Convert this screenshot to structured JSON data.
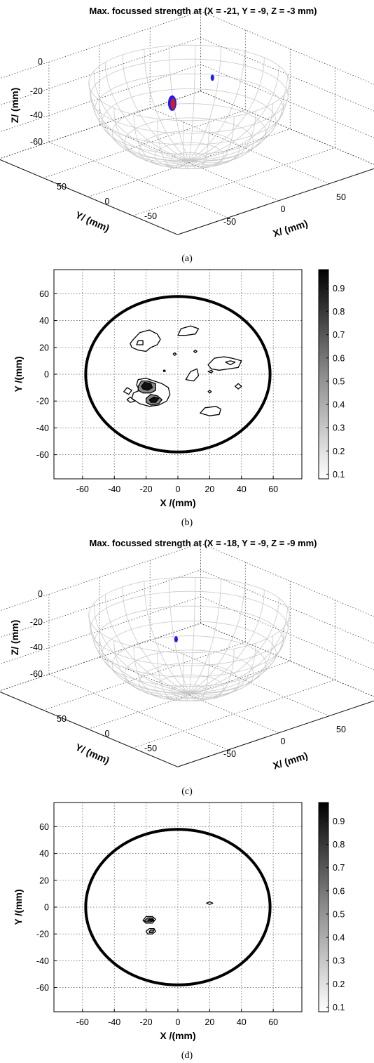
{
  "chart_data": [
    {
      "panel": "(a)",
      "type": "surface3d",
      "title": "Max. focussed strength at (X = -21, Y = -9, Z = -3 mm)",
      "xlabel": "X/ (mm)",
      "ylabel": "Y/ (mm)",
      "zlabel": "Z/ (mm)",
      "x_ticks": [
        "-50",
        "0",
        "50"
      ],
      "y_ticks": [
        "50",
        "0",
        "-50"
      ],
      "z_ticks": [
        "0",
        "-20",
        "-40",
        "-60"
      ],
      "zlim": [
        -60,
        0
      ],
      "grid": true,
      "surface": "hemisphere, radius 58 mm",
      "focus_point_mm": {
        "x": -21,
        "y": -9,
        "z": -3
      },
      "markers": [
        {
          "x": -21,
          "y": -9,
          "z": -3,
          "color": "#1a1aff",
          "size": "large"
        },
        {
          "x": 18,
          "y": 0,
          "z": -2,
          "color": "#1a1aff",
          "size": "small"
        }
      ],
      "marker_inner_color": "#cc2020"
    },
    {
      "panel": "(b)",
      "type": "contour",
      "xlabel": "X /(mm)",
      "ylabel": "Y /(mm)",
      "x_ticks": [
        "-60",
        "-40",
        "-20",
        "0",
        "20",
        "40",
        "60"
      ],
      "y_ticks": [
        "60",
        "40",
        "20",
        "0",
        "-20",
        "-40",
        "-60"
      ],
      "xlim": [
        -78,
        78
      ],
      "ylim": [
        -78,
        78
      ],
      "grid": true,
      "colorbar": {
        "ticks": [
          "0.9",
          "0.8",
          "0.7",
          "0.6",
          "0.5",
          "0.4",
          "0.3",
          "0.2",
          "0.1"
        ],
        "range": [
          0.08,
          0.98
        ],
        "colormap": "gray-reversed"
      },
      "boundary_circle_radius_mm": 58,
      "peaks": [
        {
          "x": -21,
          "y": -9,
          "value": 1.0
        },
        {
          "x": -15,
          "y": -19,
          "value": 0.7
        }
      ],
      "contours": [
        {
          "level": 0.1,
          "points": [
            [
              -24,
              -12
            ],
            [
              -26,
              -8
            ],
            [
              -25,
              -4
            ],
            [
              -20,
              -3
            ],
            [
              -15,
              -5
            ],
            [
              -10,
              -7
            ],
            [
              -6,
              -10
            ],
            [
              -5,
              -15
            ],
            [
              -7,
              -20
            ],
            [
              -12,
              -23
            ],
            [
              -18,
              -24
            ],
            [
              -24,
              -22
            ],
            [
              -29,
              -18
            ],
            [
              -28,
              -14
            ]
          ]
        },
        {
          "level": 0.3,
          "points": [
            [
              -25,
              -9
            ],
            [
              -23,
              -5
            ],
            [
              -19,
              -5
            ],
            [
              -14,
              -7
            ],
            [
              -14,
              -12
            ],
            [
              -17,
              -14
            ],
            [
              -22,
              -14
            ],
            [
              -25,
              -12
            ]
          ]
        },
        {
          "level": 0.3,
          "points": [
            [
              -20,
              -18
            ],
            [
              -17,
              -15
            ],
            [
              -13,
              -16
            ],
            [
              -10,
              -19
            ],
            [
              -12,
              -22
            ],
            [
              -17,
              -23
            ],
            [
              -20,
              -21
            ]
          ]
        },
        {
          "level": 0.6,
          "points": [
            [
              -23,
              -9
            ],
            [
              -21,
              -6
            ],
            [
              -17,
              -7
            ],
            [
              -16,
              -10
            ],
            [
              -19,
              -12
            ],
            [
              -22,
              -11
            ]
          ]
        },
        {
          "level": 0.6,
          "points": [
            [
              -18,
              -19
            ],
            [
              -15,
              -17
            ],
            [
              -12,
              -18
            ],
            [
              -14,
              -21
            ],
            [
              -17,
              -21
            ]
          ]
        },
        {
          "level": 0.1,
          "points": [
            [
              -34,
              -13
            ],
            [
              -32,
              -10
            ],
            [
              -29,
              -12
            ],
            [
              -31,
              -15
            ]
          ]
        },
        {
          "level": 0.1,
          "points": [
            [
              -32,
              -19
            ],
            [
              -30,
              -17
            ],
            [
              -27,
              -20
            ],
            [
              -30,
              -21
            ]
          ]
        },
        {
          "level": 0.1,
          "points": [
            [
              -30,
              23
            ],
            [
              -28,
              26
            ],
            [
              -24,
              31
            ],
            [
              -18,
              33
            ],
            [
              -13,
              30
            ],
            [
              -11,
              26
            ],
            [
              -13,
              22
            ],
            [
              -17,
              20
            ],
            [
              -20,
              17
            ],
            [
              -25,
              18
            ],
            [
              -29,
              20
            ]
          ]
        },
        {
          "level": 0.1,
          "points": [
            [
              -26,
              22
            ],
            [
              -25,
              25
            ],
            [
              -22,
              25
            ],
            [
              -22,
              22
            ]
          ]
        },
        {
          "level": 0.1,
          "points": [
            [
              0,
              29
            ],
            [
              2,
              34
            ],
            [
              8,
              36
            ],
            [
              13,
              34
            ],
            [
              11,
              30
            ],
            [
              5,
              29
            ]
          ]
        },
        {
          "level": 0.1,
          "points": [
            [
              19,
              7
            ],
            [
              23,
              12
            ],
            [
              29,
              13
            ],
            [
              34,
              12
            ],
            [
              40,
              10
            ],
            [
              38,
              5
            ],
            [
              32,
              4
            ],
            [
              26,
              3
            ],
            [
              21,
              4
            ]
          ]
        },
        {
          "level": 0.1,
          "points": [
            [
              30,
              9
            ],
            [
              33,
              10
            ],
            [
              36,
              9
            ],
            [
              33,
              7
            ]
          ]
        },
        {
          "level": 0.1,
          "points": [
            [
              5,
              -4
            ],
            [
              8,
              2
            ],
            [
              12,
              4
            ],
            [
              13,
              -1
            ],
            [
              10,
              -5
            ]
          ]
        },
        {
          "level": 0.1,
          "points": [
            [
              14,
              -29
            ],
            [
              17,
              -25
            ],
            [
              24,
              -24
            ],
            [
              27,
              -26
            ],
            [
              26,
              -30
            ],
            [
              20,
              -31
            ]
          ]
        },
        {
          "level": 0.1,
          "points": [
            [
              36,
              -9
            ],
            [
              38,
              -7
            ],
            [
              40,
              -9
            ],
            [
              38,
              -11
            ]
          ]
        },
        {
          "level": 0.1,
          "points": [
            [
              -9,
              3
            ],
            [
              -8,
              3
            ],
            [
              -8,
              2
            ],
            [
              -9,
              2
            ]
          ]
        },
        {
          "level": 0.1,
          "points": [
            [
              -3,
              15
            ],
            [
              -2,
              16
            ],
            [
              -1,
              15
            ],
            [
              -2,
              14
            ]
          ]
        },
        {
          "level": 0.1,
          "points": [
            [
              10,
              17
            ],
            [
              11,
              18
            ],
            [
              12,
              17
            ],
            [
              11,
              16
            ]
          ]
        },
        {
          "level": 0.1,
          "points": [
            [
              19,
              2
            ],
            [
              21,
              3
            ],
            [
              22,
              2
            ],
            [
              21,
              1
            ]
          ]
        },
        {
          "level": 0.1,
          "points": [
            [
              19,
              -13
            ],
            [
              20,
              -12
            ],
            [
              21,
              -13
            ],
            [
              20,
              -14
            ]
          ]
        }
      ]
    },
    {
      "panel": "(c)",
      "type": "surface3d",
      "title": "Max. focussed strength at (X = -18, Y = -9, Z = -9 mm)",
      "xlabel": "X/ (mm)",
      "ylabel": "Y/ (mm)",
      "zlabel": "Z/ (mm)",
      "x_ticks": [
        "-50",
        "0",
        "50"
      ],
      "y_ticks": [
        "50",
        "0",
        "-50"
      ],
      "z_ticks": [
        "0",
        "-20",
        "-40",
        "-60"
      ],
      "zlim": [
        -60,
        0
      ],
      "grid": true,
      "surface": "hemisphere, radius 58 mm",
      "focus_point_mm": {
        "x": -18,
        "y": -9,
        "z": -9
      },
      "markers": [
        {
          "x": -18,
          "y": -9,
          "z": -9,
          "color": "#1a1aff",
          "size": "small"
        }
      ],
      "marker_inner_color": "#cc2020"
    },
    {
      "panel": "(d)",
      "type": "contour",
      "xlabel": "X /(mm)",
      "ylabel": "Y /(mm)",
      "x_ticks": [
        "-60",
        "-40",
        "-20",
        "0",
        "20",
        "40",
        "60"
      ],
      "y_ticks": [
        "60",
        "40",
        "20",
        "0",
        "-20",
        "-40",
        "-60"
      ],
      "xlim": [
        -78,
        78
      ],
      "ylim": [
        -78,
        78
      ],
      "grid": true,
      "colorbar": {
        "ticks": [
          "0.9",
          "0.8",
          "0.7",
          "0.6",
          "0.5",
          "0.4",
          "0.3",
          "0.2",
          "0.1"
        ],
        "range": [
          0.08,
          0.98
        ],
        "colormap": "gray-reversed"
      },
      "boundary_circle_radius_mm": 58,
      "peaks": [
        {
          "x": -18,
          "y": -9,
          "value": 1.0
        },
        {
          "x": -17,
          "y": -18,
          "value": 0.6
        }
      ],
      "contours": [
        {
          "level": 0.1,
          "points": [
            [
              -22,
              -10
            ],
            [
              -20,
              -7
            ],
            [
              -16,
              -7
            ],
            [
              -14,
              -9
            ],
            [
              -16,
              -12
            ],
            [
              -20,
              -12
            ]
          ]
        },
        {
          "level": 0.3,
          "points": [
            [
              -21,
              -10
            ],
            [
              -19,
              -8
            ],
            [
              -16,
              -8
            ],
            [
              -15,
              -10
            ],
            [
              -17,
              -11
            ],
            [
              -20,
              -11
            ]
          ]
        },
        {
          "level": 0.6,
          "points": [
            [
              -19,
              -10
            ],
            [
              -18,
              -9
            ],
            [
              -16,
              -9
            ],
            [
              -16,
              -10
            ],
            [
              -18,
              -10
            ]
          ]
        },
        {
          "level": 0.1,
          "points": [
            [
              -20,
              -18
            ],
            [
              -18,
              -16
            ],
            [
              -15,
              -16
            ],
            [
              -14,
              -18
            ],
            [
              -16,
              -20
            ],
            [
              -19,
              -20
            ]
          ]
        },
        {
          "level": 0.3,
          "points": [
            [
              -18,
              -18
            ],
            [
              -17,
              -17
            ],
            [
              -15,
              -17
            ],
            [
              -16,
              -19
            ],
            [
              -18,
              -19
            ]
          ]
        },
        {
          "level": 0.1,
          "points": [
            [
              18,
              3
            ],
            [
              20,
              4
            ],
            [
              22,
              3
            ],
            [
              20,
              2
            ]
          ]
        }
      ]
    }
  ],
  "captions": [
    "(a)",
    "(b)",
    "(c)",
    "(d)"
  ]
}
